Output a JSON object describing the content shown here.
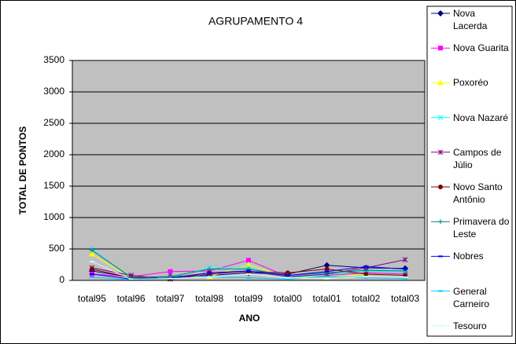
{
  "chart_data": {
    "type": "line",
    "title": "AGRUPAMENTO 4",
    "x_label": "ANO",
    "y_label": "TOTAL DE PONTOS",
    "categories": [
      "total95",
      "total96",
      "total97",
      "total98",
      "total99",
      "total00",
      "total01",
      "total02",
      "total03"
    ],
    "ylim": [
      0,
      3500
    ],
    "yticks": [
      0,
      500,
      1000,
      1500,
      2000,
      2500,
      3000,
      3500
    ],
    "grid": true,
    "series": [
      {
        "name": "Nova Lacerda",
        "color": "#000080",
        "values": [
          150,
          50,
          60,
          80,
          120,
          100,
          240,
          200,
          190
        ]
      },
      {
        "name": "Nova Guarita",
        "color": "#ff00ff",
        "values": [
          100,
          60,
          140,
          150,
          320,
          60,
          80,
          120,
          100
        ]
      },
      {
        "name": "Poxoréo",
        "color": "#ffff00",
        "values": [
          420,
          30,
          50,
          60,
          250,
          50,
          50,
          100,
          80
        ]
      },
      {
        "name": "Nova Nazaré",
        "color": "#00ffff",
        "values": [
          500,
          30,
          40,
          200,
          200,
          40,
          90,
          150,
          130
        ]
      },
      {
        "name": "Campos de Júlio",
        "color": "#800080",
        "values": [
          200,
          80,
          20,
          100,
          150,
          60,
          100,
          200,
          330
        ]
      },
      {
        "name": "Novo Santo Antônio",
        "color": "#800000",
        "values": [
          180,
          40,
          30,
          120,
          140,
          120,
          180,
          100,
          80
        ]
      },
      {
        "name": "Primavera do Leste",
        "color": "#008080",
        "values": [
          480,
          50,
          60,
          180,
          180,
          80,
          120,
          160,
          150
        ]
      },
      {
        "name": "Nobres",
        "color": "#0000ff",
        "values": [
          100,
          20,
          40,
          120,
          150,
          80,
          140,
          220,
          180
        ]
      },
      {
        "name": "General Carneiro",
        "color": "#00ccff",
        "values": [
          50,
          10,
          30,
          60,
          40,
          20,
          60,
          40,
          30
        ]
      },
      {
        "name": "Tesouro",
        "color": "#ccffff",
        "values": [
          300,
          20,
          30,
          50,
          100,
          40,
          30,
          60,
          50
        ]
      }
    ]
  }
}
